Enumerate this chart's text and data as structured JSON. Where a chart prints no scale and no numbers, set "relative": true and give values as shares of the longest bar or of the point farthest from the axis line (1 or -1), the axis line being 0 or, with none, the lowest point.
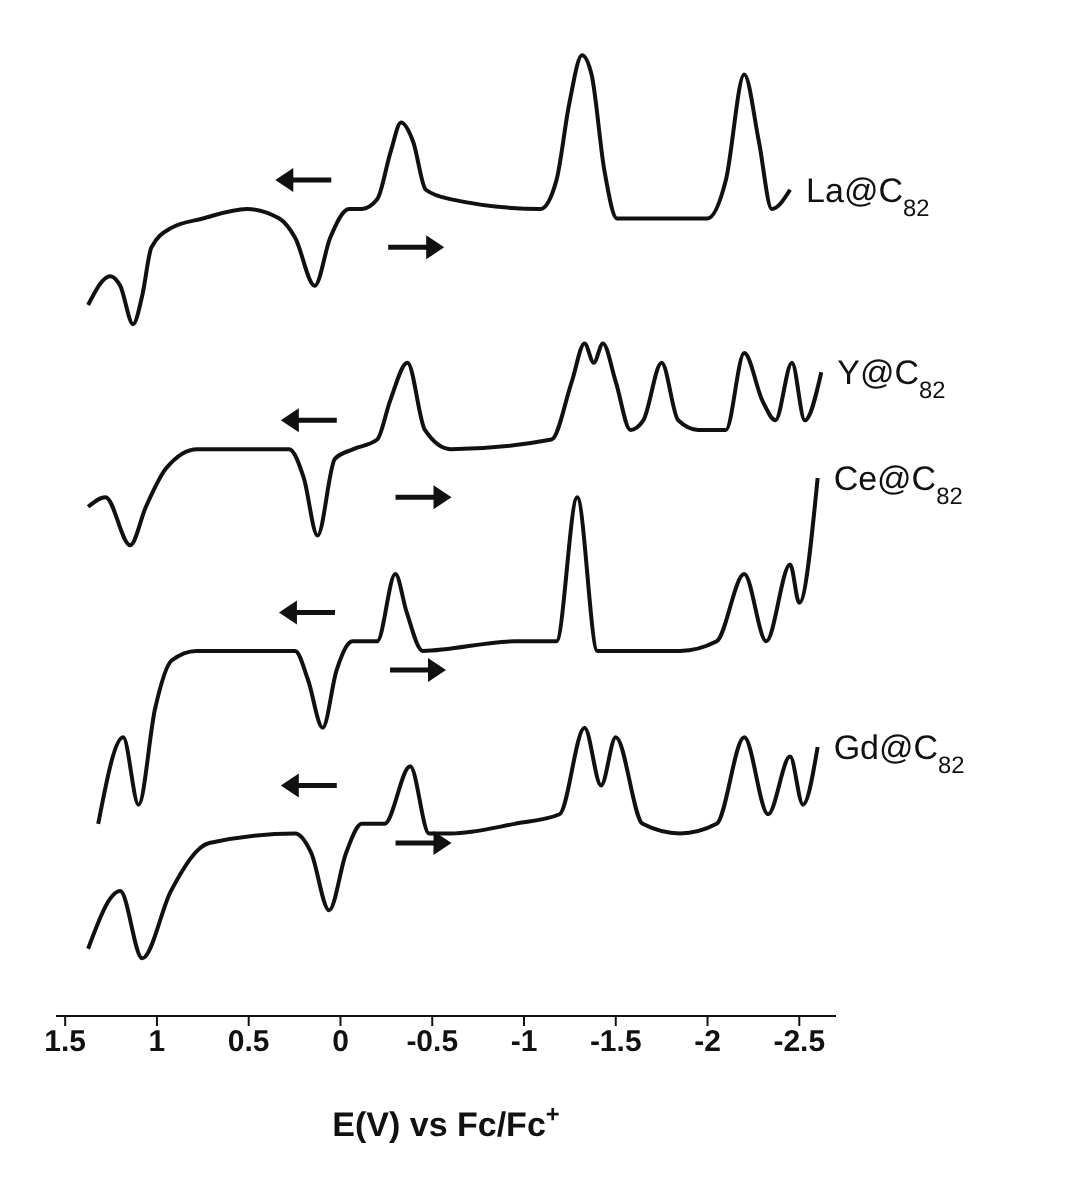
{
  "chart_data": {
    "type": "line",
    "relative": true,
    "xlabel": "E(V) vs Fc/Fc$^{+}$",
    "xlim": [
      1.55,
      -2.7
    ],
    "xticks": [
      1.5,
      1,
      0.5,
      0,
      -0.5,
      -1,
      -1.5,
      -2,
      -2.5
    ],
    "grid": false,
    "legend": false,
    "marker": "none",
    "line_style": "solid",
    "series": [
      {
        "name": "La@C$_{82}$",
        "color": "#111111",
        "x": [
          1.375,
          1.254,
          1.2,
          1.13,
          1.08,
          1.03,
          0.924,
          0.75,
          0.51,
          0.333,
          0.247,
          0.14,
          0.056,
          -0.047,
          -0.116,
          -0.2,
          -0.274,
          -0.33,
          -0.396,
          -0.465,
          -0.604,
          -1.09,
          -1.177,
          -1.247,
          -1.316,
          -1.368,
          -1.438,
          -1.507,
          -1.785,
          -1.85,
          -2.0,
          -2.1,
          -2.2,
          -2.28,
          -2.35,
          -2.45
        ],
        "values": [
          0.74,
          0.77,
          0.76,
          0.72,
          0.75,
          0.8,
          0.82,
          0.83,
          0.84,
          0.83,
          0.81,
          0.76,
          0.81,
          0.84,
          0.84,
          0.85,
          0.9,
          0.93,
          0.91,
          0.86,
          0.85,
          0.84,
          0.87,
          0.95,
          1.0,
          0.98,
          0.88,
          0.83,
          0.83,
          0.83,
          0.83,
          0.87,
          0.98,
          0.91,
          0.84,
          0.86
        ]
      },
      {
        "name": "Y@C$_{82}$",
        "color": "#111111",
        "x": [
          1.375,
          1.28,
          1.146,
          1.06,
          0.95,
          0.78,
          0.4,
          0.28,
          0.2,
          0.125,
          0.03,
          -0.07,
          -0.2,
          -0.27,
          -0.365,
          -0.46,
          -0.6,
          -1.15,
          -1.26,
          -1.33,
          -1.38,
          -1.43,
          -1.5,
          -1.58,
          -1.65,
          -1.75,
          -1.84,
          -1.95,
          -2.1,
          -2.2,
          -2.3,
          -2.37,
          -2.46,
          -2.53,
          -2.62
        ],
        "values": [
          0.53,
          0.54,
          0.49,
          0.53,
          0.57,
          0.59,
          0.59,
          0.59,
          0.56,
          0.5,
          0.58,
          0.59,
          0.6,
          0.64,
          0.68,
          0.61,
          0.59,
          0.6,
          0.66,
          0.7,
          0.68,
          0.7,
          0.66,
          0.61,
          0.62,
          0.68,
          0.62,
          0.61,
          0.61,
          0.69,
          0.64,
          0.62,
          0.68,
          0.62,
          0.67
        ]
      },
      {
        "name": "Ce@C$_{82}$",
        "color": "#111111",
        "x": [
          1.32,
          1.184,
          1.1,
          1.01,
          0.92,
          0.785,
          0.576,
          0.247,
          0.177,
          0.097,
          0.021,
          -0.066,
          -0.2,
          -0.299,
          -0.361,
          -0.448,
          -0.95,
          -1.177,
          -1.29,
          -1.4,
          -1.85,
          -2.05,
          -2.2,
          -2.32,
          -2.45,
          -2.5,
          -2.6
        ],
        "values": [
          0.2,
          0.29,
          0.22,
          0.32,
          0.37,
          0.38,
          0.38,
          0.38,
          0.35,
          0.3,
          0.36,
          0.39,
          0.39,
          0.46,
          0.42,
          0.38,
          0.39,
          0.39,
          0.54,
          0.38,
          0.38,
          0.39,
          0.46,
          0.39,
          0.47,
          0.43,
          0.56
        ]
      },
      {
        "name": "Gd@C$_{82}$",
        "color": "#111111",
        "x": [
          1.375,
          1.2,
          1.08,
          0.924,
          0.715,
          0.247,
          0.16,
          0.062,
          -0.031,
          -0.116,
          -0.24,
          -0.38,
          -0.483,
          -0.6,
          -0.95,
          -1.194,
          -1.33,
          -1.42,
          -1.5,
          -1.646,
          -1.85,
          -2.05,
          -2.2,
          -2.33,
          -2.45,
          -2.52,
          -2.6
        ],
        "values": [
          0.07,
          0.13,
          0.06,
          0.13,
          0.18,
          0.19,
          0.17,
          0.11,
          0.17,
          0.2,
          0.2,
          0.26,
          0.19,
          0.19,
          0.2,
          0.21,
          0.3,
          0.24,
          0.29,
          0.2,
          0.19,
          0.2,
          0.29,
          0.21,
          0.27,
          0.22,
          0.28
        ]
      }
    ]
  }
}
